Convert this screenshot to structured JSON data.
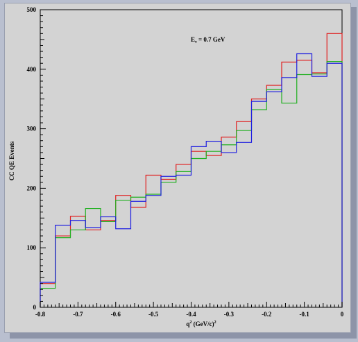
{
  "chart_data": {
    "type": "line",
    "step": true,
    "annotation_main": "E",
    "annotation_sub": "ν",
    "annotation_rest": " = 0.7 GeV",
    "xlabel_main": "q",
    "xlabel_sup": "2",
    "xlabel_rest": " (GeV/c)",
    "xlabel_sup2": "2",
    "ylabel": "CC QE Events",
    "xlim": [
      -0.8,
      0
    ],
    "ylim": [
      0,
      500
    ],
    "x_ticks": [
      -0.8,
      -0.7,
      -0.6,
      -0.5,
      -0.4,
      -0.3,
      -0.2,
      -0.1,
      0
    ],
    "x_tick_labels": [
      "-0.8",
      "-0.7",
      "-0.6",
      "-0.5",
      "-0.4",
      "-0.3",
      "-0.2",
      "-0.1",
      "0"
    ],
    "y_ticks": [
      0,
      100,
      200,
      300,
      400,
      500
    ],
    "y_tick_labels": [
      "0",
      "100",
      "200",
      "300",
      "400",
      "500"
    ],
    "grid": false,
    "bin_edges": [
      -0.8,
      -0.76,
      -0.72,
      -0.68,
      -0.64,
      -0.6,
      -0.56,
      -0.52,
      -0.48,
      -0.44,
      -0.4,
      -0.36,
      -0.32,
      -0.28,
      -0.24,
      -0.2,
      -0.16,
      -0.12,
      -0.08,
      -0.04,
      0
    ],
    "series": [
      {
        "color": "#e02020",
        "values": [
          40,
          120,
          153,
          130,
          146,
          188,
          168,
          222,
          215,
          240,
          262,
          255,
          286,
          312,
          350,
          373,
          412,
          415,
          394,
          460
        ]
      },
      {
        "color": "#20b020",
        "values": [
          32,
          117,
          130,
          166,
          144,
          180,
          185,
          190,
          210,
          228,
          250,
          262,
          273,
          297,
          332,
          366,
          343,
          391,
          392,
          413
        ]
      },
      {
        "color": "#2020e0",
        "values": [
          42,
          138,
          146,
          134,
          152,
          132,
          178,
          188,
          220,
          222,
          270,
          279,
          260,
          277,
          346,
          362,
          386,
          426,
          388,
          410
        ]
      }
    ]
  }
}
